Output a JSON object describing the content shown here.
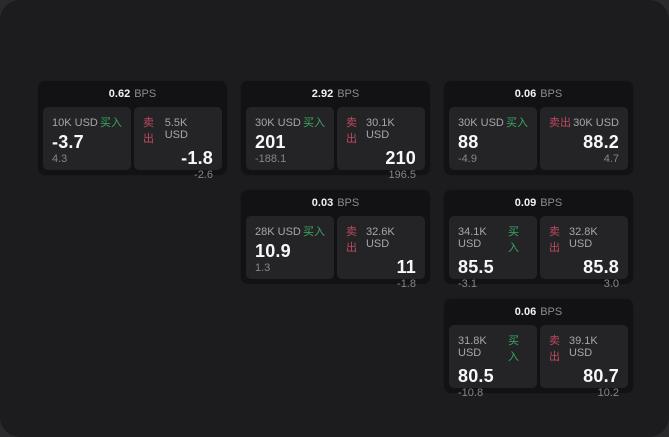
{
  "labels": {
    "bps": "BPS",
    "buy": "买入",
    "sell": "卖出"
  },
  "colors": {
    "buy": "#3aa963",
    "sell": "#bd4a5f",
    "panel_bg": "#1c1c1e",
    "card_bg": "#121214",
    "tile_bg": "#242427"
  },
  "cards": [
    {
      "bps": "0.62",
      "buy": {
        "amount": "10K USD",
        "value": "-3.7",
        "delta": "4.3"
      },
      "sell": {
        "amount": "5.5K USD",
        "value": "-1.8",
        "delta": "-2.6"
      }
    },
    {
      "bps": "2.92",
      "buy": {
        "amount": "30K USD",
        "value": "201",
        "delta": "-188.1"
      },
      "sell": {
        "amount": "30.1K USD",
        "value": "210",
        "delta": "196.5"
      }
    },
    {
      "bps": "0.06",
      "buy": {
        "amount": "30K USD",
        "value": "88",
        "delta": "-4.9"
      },
      "sell": {
        "amount": "30K USD",
        "value": "88.2",
        "delta": "4.7"
      }
    },
    {
      "bps": "0.03",
      "buy": {
        "amount": "28K USD",
        "value": "10.9",
        "delta": "1.3"
      },
      "sell": {
        "amount": "32.6K USD",
        "value": "11",
        "delta": "-1.8"
      }
    },
    {
      "bps": "0.09",
      "buy": {
        "amount": "34.1K USD",
        "value": "85.5",
        "delta": "-3.1"
      },
      "sell": {
        "amount": "32.8K USD",
        "value": "85.8",
        "delta": "3.0"
      }
    },
    {
      "bps": "0.06",
      "buy": {
        "amount": "31.8K USD",
        "value": "80.5",
        "delta": "-10.8"
      },
      "sell": {
        "amount": "39.1K USD",
        "value": "80.7",
        "delta": "10.2"
      }
    }
  ]
}
